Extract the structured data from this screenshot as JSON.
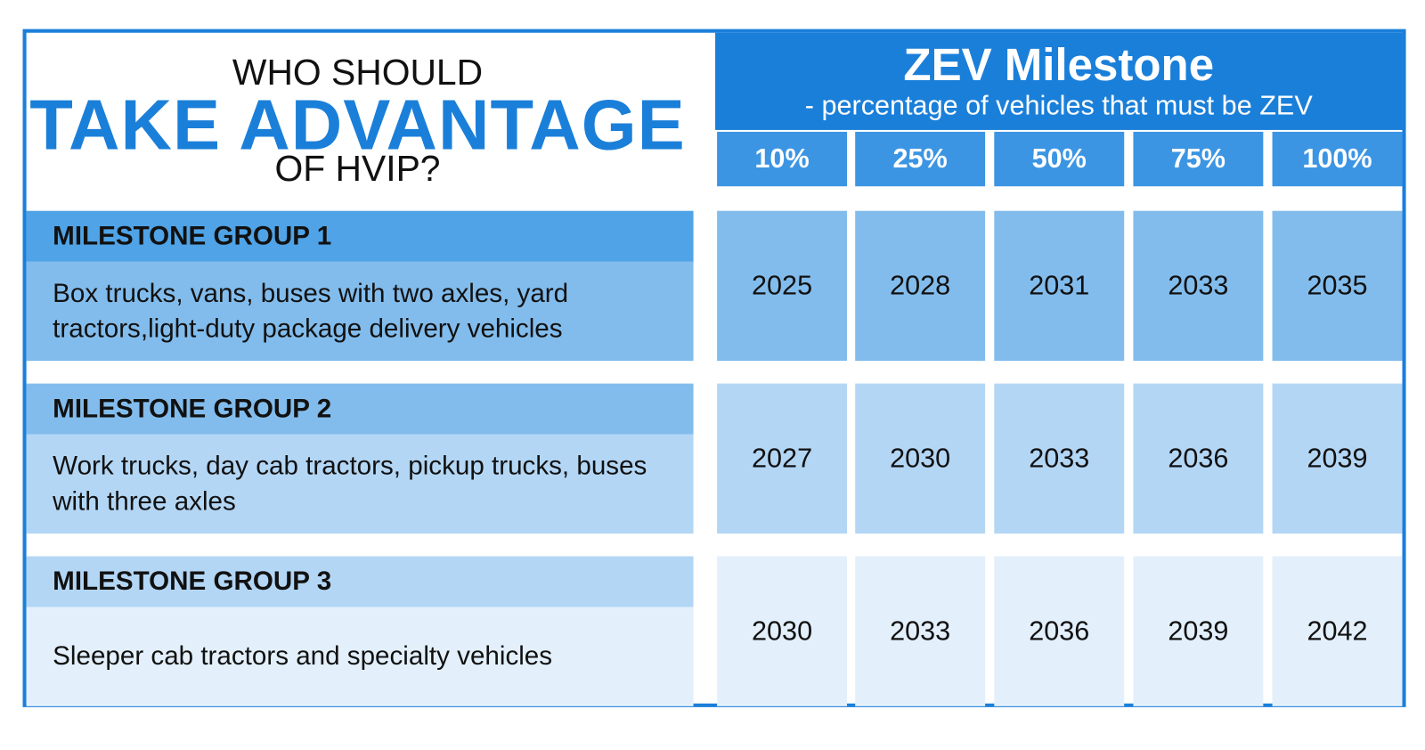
{
  "header": {
    "line1": "WHO SHOULD",
    "line2": "TAKE ADVANTAGE",
    "line3": "OF HVIP?"
  },
  "milestone": {
    "title": "ZEV Milestone",
    "subtitle": "- percentage of vehicles that must be ZEV",
    "columns": [
      "10%",
      "25%",
      "50%",
      "75%",
      "100%"
    ]
  },
  "groups": [
    {
      "name": "MILESTONE GROUP 1",
      "description": "Box trucks, vans, buses with two axles, yard tractors,light-duty package delivery vehicles",
      "years": [
        2025,
        2028,
        2031,
        2033,
        2035
      ]
    },
    {
      "name": "MILESTONE GROUP 2",
      "description": "Work trucks, day cab tractors, pickup trucks, buses with three axles",
      "years": [
        2027,
        2030,
        2033,
        2036,
        2039
      ]
    },
    {
      "name": "MILESTONE GROUP 3",
      "description": "Sleeper cab tractors and specialty vehicles",
      "years": [
        2030,
        2033,
        2036,
        2039,
        2042
      ]
    }
  ]
}
